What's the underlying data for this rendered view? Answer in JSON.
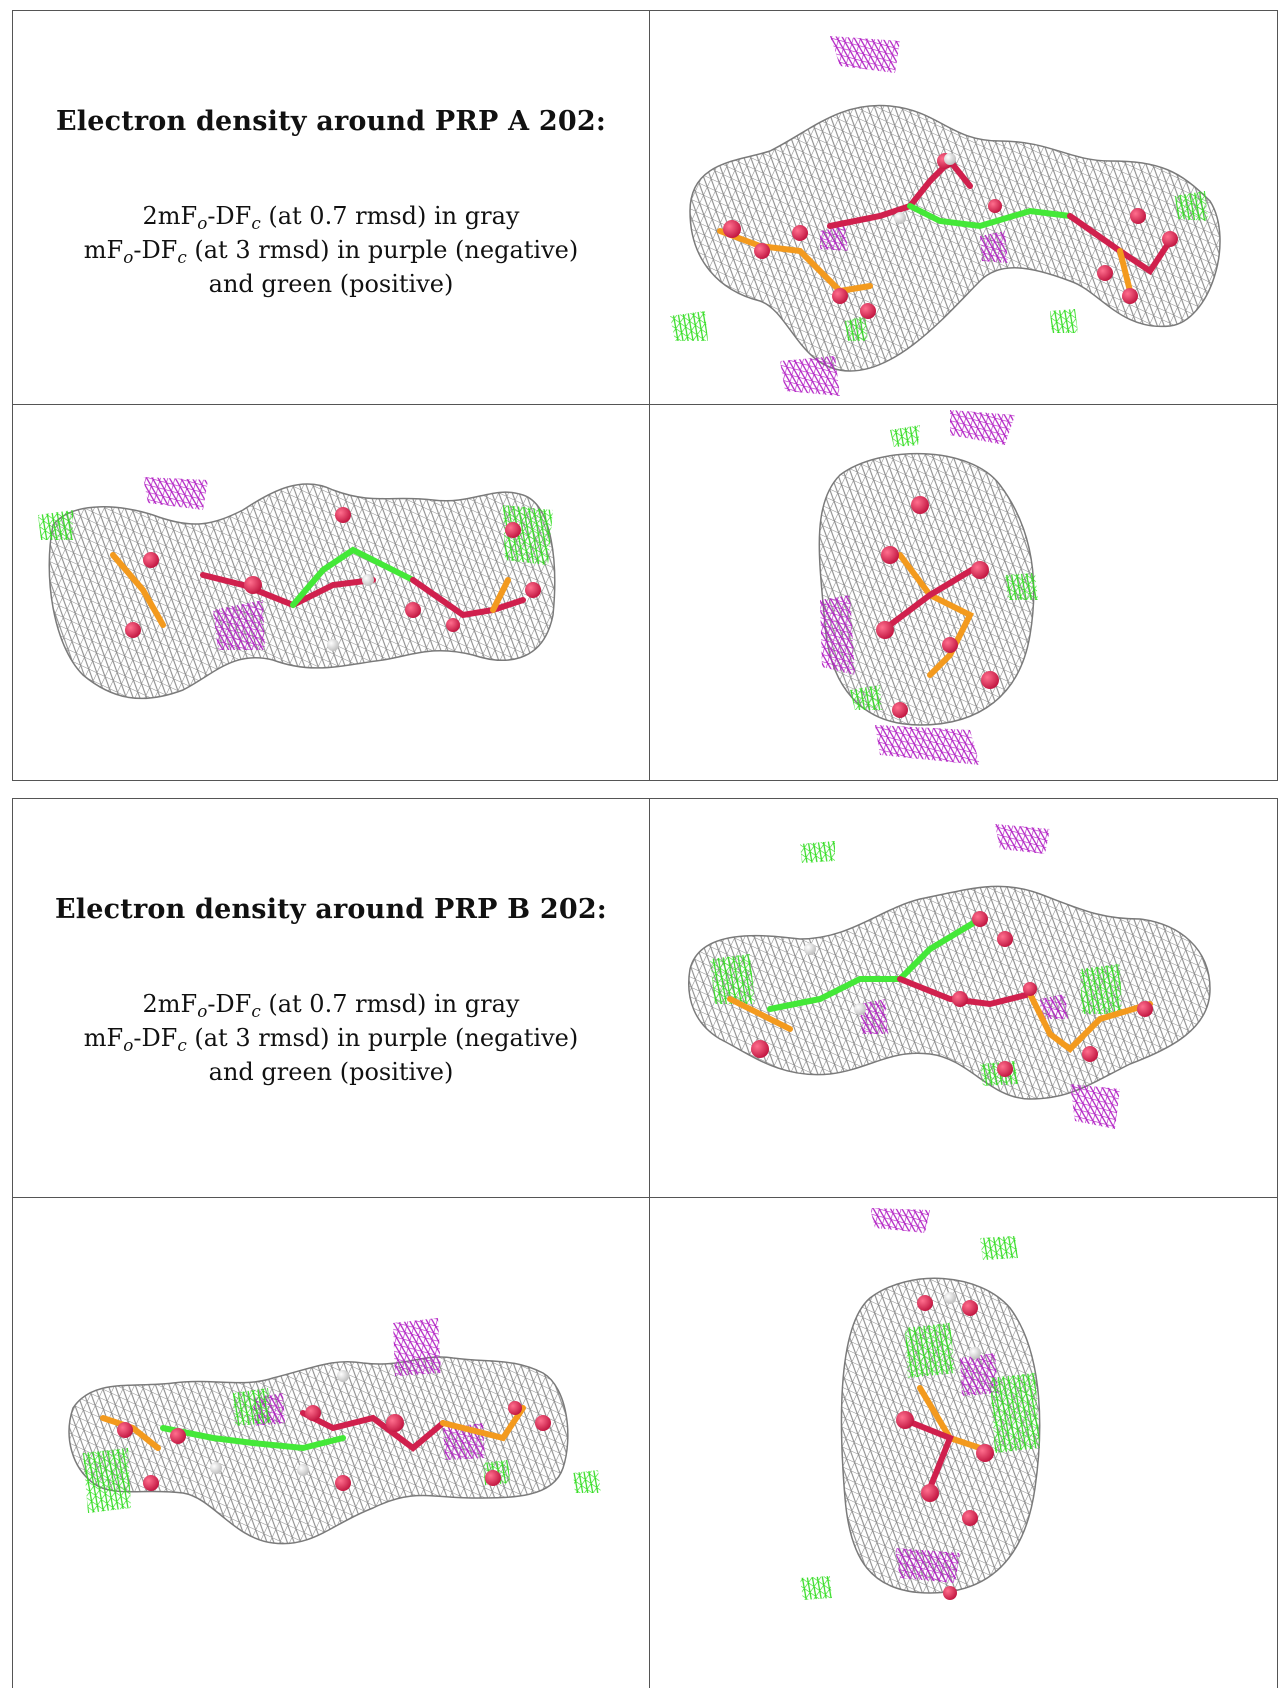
{
  "panels": [
    {
      "heading": "Electron density around PRP A 202:",
      "legend": {
        "line1": {
          "a": "2mF",
          "sub1": "o",
          "b": "-DF",
          "sub2": "c",
          "c": " (at 0.7 rmsd) in gray"
        },
        "line2": {
          "a": "mF",
          "sub1": "o",
          "b": "-DF",
          "sub2": "c",
          "c": " (at 3 rmsd) in purple (negative)"
        },
        "line3": "and green (positive)"
      }
    },
    {
      "heading": "Electron density around PRP B 202:",
      "legend": {
        "line1": {
          "a": "2mF",
          "sub1": "o",
          "b": "-DF",
          "sub2": "c",
          "c": " (at 0.7 rmsd) in gray"
        },
        "line2": {
          "a": "mF",
          "sub1": "o",
          "b": "-DF",
          "sub2": "c",
          "c": " (at 3 rmsd) in purple (negative)"
        },
        "line3": "and green (positive)"
      }
    }
  ],
  "colors": {
    "mesh_gray": "#8a8a8a",
    "negative_purple": "#b21fc4",
    "positive_green": "#33dd22",
    "oxygen": "#d0204d",
    "phosphorus": "#f39a1e",
    "carbon": "#44e838",
    "hydrogen": "#e8e8e8"
  }
}
